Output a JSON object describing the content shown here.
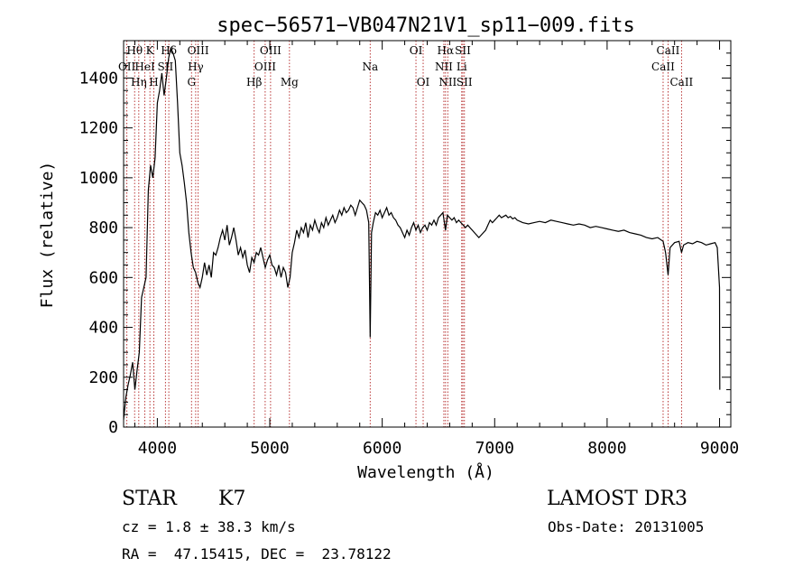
{
  "chart_data": {
    "type": "line",
    "title": "spec−56571−VB047N21V1_sp11−009.fits",
    "xlabel": "Wavelength (Å)",
    "ylabel": "Flux (relative)",
    "xlim": [
      3700,
      9100
    ],
    "ylim": [
      0,
      1550
    ],
    "x_ticks": [
      4000,
      5000,
      6000,
      7000,
      8000,
      9000
    ],
    "y_ticks": [
      0,
      200,
      400,
      600,
      800,
      1000,
      1200,
      1400
    ],
    "grid": false,
    "series": [
      {
        "points": [
          [
            3700,
            30
          ],
          [
            3720,
            120
          ],
          [
            3740,
            170
          ],
          [
            3760,
            210
          ],
          [
            3780,
            260
          ],
          [
            3800,
            150
          ],
          [
            3820,
            230
          ],
          [
            3840,
            300
          ],
          [
            3860,
            520
          ],
          [
            3880,
            560
          ],
          [
            3900,
            600
          ],
          [
            3920,
            950
          ],
          [
            3940,
            1050
          ],
          [
            3960,
            1000
          ],
          [
            3980,
            1080
          ],
          [
            4000,
            1300
          ],
          [
            4020,
            1350
          ],
          [
            4040,
            1420
          ],
          [
            4060,
            1330
          ],
          [
            4080,
            1400
          ],
          [
            4100,
            1480
          ],
          [
            4120,
            1520
          ],
          [
            4140,
            1500
          ],
          [
            4160,
            1470
          ],
          [
            4180,
            1300
          ],
          [
            4200,
            1100
          ],
          [
            4220,
            1050
          ],
          [
            4240,
            980
          ],
          [
            4260,
            900
          ],
          [
            4280,
            780
          ],
          [
            4300,
            700
          ],
          [
            4320,
            640
          ],
          [
            4340,
            620
          ],
          [
            4360,
            580
          ],
          [
            4380,
            560
          ],
          [
            4400,
            600
          ],
          [
            4420,
            660
          ],
          [
            4440,
            610
          ],
          [
            4460,
            650
          ],
          [
            4480,
            600
          ],
          [
            4500,
            700
          ],
          [
            4520,
            690
          ],
          [
            4540,
            720
          ],
          [
            4560,
            760
          ],
          [
            4580,
            790
          ],
          [
            4600,
            750
          ],
          [
            4620,
            810
          ],
          [
            4640,
            730
          ],
          [
            4660,
            760
          ],
          [
            4680,
            800
          ],
          [
            4700,
            750
          ],
          [
            4720,
            690
          ],
          [
            4740,
            720
          ],
          [
            4760,
            680
          ],
          [
            4780,
            710
          ],
          [
            4800,
            650
          ],
          [
            4820,
            620
          ],
          [
            4840,
            680
          ],
          [
            4860,
            660
          ],
          [
            4880,
            700
          ],
          [
            4900,
            690
          ],
          [
            4920,
            720
          ],
          [
            4940,
            680
          ],
          [
            4960,
            640
          ],
          [
            4980,
            670
          ],
          [
            5000,
            690
          ],
          [
            5020,
            650
          ],
          [
            5040,
            640
          ],
          [
            5060,
            610
          ],
          [
            5080,
            650
          ],
          [
            5100,
            600
          ],
          [
            5120,
            640
          ],
          [
            5140,
            620
          ],
          [
            5160,
            560
          ],
          [
            5180,
            600
          ],
          [
            5200,
            700
          ],
          [
            5220,
            740
          ],
          [
            5240,
            790
          ],
          [
            5260,
            760
          ],
          [
            5280,
            800
          ],
          [
            5300,
            780
          ],
          [
            5320,
            820
          ],
          [
            5340,
            760
          ],
          [
            5360,
            810
          ],
          [
            5380,
            790
          ],
          [
            5400,
            830
          ],
          [
            5420,
            800
          ],
          [
            5440,
            780
          ],
          [
            5460,
            820
          ],
          [
            5480,
            800
          ],
          [
            5500,
            840
          ],
          [
            5520,
            810
          ],
          [
            5540,
            830
          ],
          [
            5560,
            850
          ],
          [
            5580,
            820
          ],
          [
            5600,
            840
          ],
          [
            5620,
            870
          ],
          [
            5640,
            850
          ],
          [
            5660,
            880
          ],
          [
            5680,
            860
          ],
          [
            5700,
            870
          ],
          [
            5720,
            890
          ],
          [
            5740,
            880
          ],
          [
            5760,
            850
          ],
          [
            5780,
            880
          ],
          [
            5800,
            910
          ],
          [
            5820,
            900
          ],
          [
            5840,
            890
          ],
          [
            5860,
            870
          ],
          [
            5880,
            820
          ],
          [
            5893,
            360
          ],
          [
            5905,
            780
          ],
          [
            5920,
            820
          ],
          [
            5940,
            860
          ],
          [
            5960,
            850
          ],
          [
            5980,
            870
          ],
          [
            6000,
            840
          ],
          [
            6020,
            860
          ],
          [
            6040,
            880
          ],
          [
            6060,
            850
          ],
          [
            6080,
            860
          ],
          [
            6100,
            840
          ],
          [
            6120,
            830
          ],
          [
            6140,
            810
          ],
          [
            6160,
            800
          ],
          [
            6180,
            780
          ],
          [
            6200,
            760
          ],
          [
            6220,
            790
          ],
          [
            6240,
            770
          ],
          [
            6260,
            800
          ],
          [
            6280,
            820
          ],
          [
            6300,
            790
          ],
          [
            6320,
            810
          ],
          [
            6340,
            780
          ],
          [
            6360,
            800
          ],
          [
            6380,
            810
          ],
          [
            6400,
            790
          ],
          [
            6420,
            820
          ],
          [
            6440,
            810
          ],
          [
            6460,
            830
          ],
          [
            6480,
            810
          ],
          [
            6500,
            840
          ],
          [
            6520,
            850
          ],
          [
            6540,
            860
          ],
          [
            6563,
            790
          ],
          [
            6580,
            850
          ],
          [
            6600,
            840
          ],
          [
            6620,
            830
          ],
          [
            6640,
            840
          ],
          [
            6660,
            820
          ],
          [
            6680,
            830
          ],
          [
            6700,
            820
          ],
          [
            6720,
            810
          ],
          [
            6740,
            800
          ],
          [
            6760,
            810
          ],
          [
            6780,
            800
          ],
          [
            6800,
            790
          ],
          [
            6820,
            780
          ],
          [
            6840,
            770
          ],
          [
            6860,
            760
          ],
          [
            6880,
            770
          ],
          [
            6900,
            780
          ],
          [
            6920,
            790
          ],
          [
            6940,
            810
          ],
          [
            6960,
            830
          ],
          [
            6980,
            820
          ],
          [
            7000,
            830
          ],
          [
            7020,
            840
          ],
          [
            7040,
            850
          ],
          [
            7060,
            840
          ],
          [
            7080,
            845
          ],
          [
            7100,
            850
          ],
          [
            7120,
            840
          ],
          [
            7140,
            845
          ],
          [
            7160,
            835
          ],
          [
            7180,
            840
          ],
          [
            7200,
            830
          ],
          [
            7250,
            820
          ],
          [
            7300,
            815
          ],
          [
            7350,
            820
          ],
          [
            7400,
            825
          ],
          [
            7450,
            820
          ],
          [
            7500,
            830
          ],
          [
            7550,
            825
          ],
          [
            7600,
            820
          ],
          [
            7650,
            815
          ],
          [
            7700,
            810
          ],
          [
            7750,
            815
          ],
          [
            7800,
            810
          ],
          [
            7850,
            800
          ],
          [
            7900,
            805
          ],
          [
            7950,
            800
          ],
          [
            8000,
            795
          ],
          [
            8050,
            790
          ],
          [
            8100,
            785
          ],
          [
            8150,
            790
          ],
          [
            8200,
            780
          ],
          [
            8250,
            775
          ],
          [
            8300,
            770
          ],
          [
            8350,
            760
          ],
          [
            8400,
            755
          ],
          [
            8450,
            760
          ],
          [
            8498,
            745
          ],
          [
            8520,
            700
          ],
          [
            8542,
            610
          ],
          [
            8560,
            720
          ],
          [
            8600,
            740
          ],
          [
            8640,
            745
          ],
          [
            8662,
            700
          ],
          [
            8680,
            730
          ],
          [
            8720,
            740
          ],
          [
            8760,
            735
          ],
          [
            8800,
            745
          ],
          [
            8840,
            740
          ],
          [
            8880,
            730
          ],
          [
            8920,
            735
          ],
          [
            8960,
            740
          ],
          [
            8980,
            720
          ],
          [
            9000,
            560
          ],
          [
            9002,
            150
          ]
        ]
      }
    ],
    "lines": [
      {
        "wl": 3729,
        "labels": [
          {
            "text": "OII",
            "row": 2
          }
        ]
      },
      {
        "wl": 3798,
        "labels": [
          {
            "text": "Hθ",
            "row": 1
          }
        ]
      },
      {
        "wl": 3835,
        "labels": [
          {
            "text": "Hη",
            "row": 3
          }
        ]
      },
      {
        "wl": 3889,
        "labels": [
          {
            "text": "HeI",
            "row": 2
          }
        ]
      },
      {
        "wl": 3934,
        "labels": [
          {
            "text": "K",
            "row": 1
          }
        ]
      },
      {
        "wl": 3969,
        "labels": [
          {
            "text": "H",
            "row": 3
          }
        ]
      },
      {
        "wl": 4072,
        "labels": [
          {
            "text": "SII",
            "row": 2
          }
        ]
      },
      {
        "wl": 4102,
        "labels": [
          {
            "text": "Hδ",
            "row": 1
          }
        ]
      },
      {
        "wl": 4304,
        "labels": [
          {
            "text": "G",
            "row": 3
          }
        ]
      },
      {
        "wl": 4341,
        "labels": [
          {
            "text": "Hγ",
            "row": 2
          }
        ]
      },
      {
        "wl": 4363,
        "labels": [
          {
            "text": "OIII",
            "row": 1
          }
        ]
      },
      {
        "wl": 4861,
        "labels": [
          {
            "text": "Hβ",
            "row": 3
          }
        ]
      },
      {
        "wl": 4959,
        "labels": [
          {
            "text": "OIII",
            "row": 2
          }
        ]
      },
      {
        "wl": 5007,
        "labels": [
          {
            "text": "OIII",
            "row": 1
          }
        ]
      },
      {
        "wl": 5175,
        "labels": [
          {
            "text": "Mg",
            "row": 3
          }
        ]
      },
      {
        "wl": 5893,
        "labels": [
          {
            "text": "Na",
            "row": 2
          }
        ]
      },
      {
        "wl": 6300,
        "labels": [
          {
            "text": "OI",
            "row": 1
          }
        ]
      },
      {
        "wl": 6364,
        "labels": [
          {
            "text": "OI",
            "row": 3
          }
        ]
      },
      {
        "wl": 6548,
        "labels": [
          {
            "text": "NII",
            "row": 2
          }
        ]
      },
      {
        "wl": 6563,
        "labels": [
          {
            "text": "Hα",
            "row": 1
          }
        ]
      },
      {
        "wl": 6583,
        "labels": [
          {
            "text": "NII",
            "row": 3
          }
        ]
      },
      {
        "wl": 6707,
        "labels": [
          {
            "text": "Li",
            "row": 2
          }
        ]
      },
      {
        "wl": 6717,
        "labels": [
          {
            "text": "SII",
            "row": 1
          }
        ]
      },
      {
        "wl": 6731,
        "labels": [
          {
            "text": "SII",
            "row": 3
          }
        ]
      },
      {
        "wl": 8498,
        "labels": [
          {
            "text": "CaII",
            "row": 2
          }
        ]
      },
      {
        "wl": 8542,
        "labels": [
          {
            "text": "CaII",
            "row": 1
          }
        ]
      },
      {
        "wl": 8662,
        "labels": [
          {
            "text": "CaII",
            "row": 3
          }
        ]
      }
    ],
    "line_color": "#000000",
    "marker_color": "#b22222"
  },
  "info": {
    "class_label": "STAR",
    "subclass": "K7",
    "survey": "LAMOST DR3",
    "cz_line": "cz = 1.8 ± 38.3 km/s",
    "obs_date": "Obs-Date: 20131005",
    "coords": "RA =  47.15415, DEC =  23.78122"
  }
}
